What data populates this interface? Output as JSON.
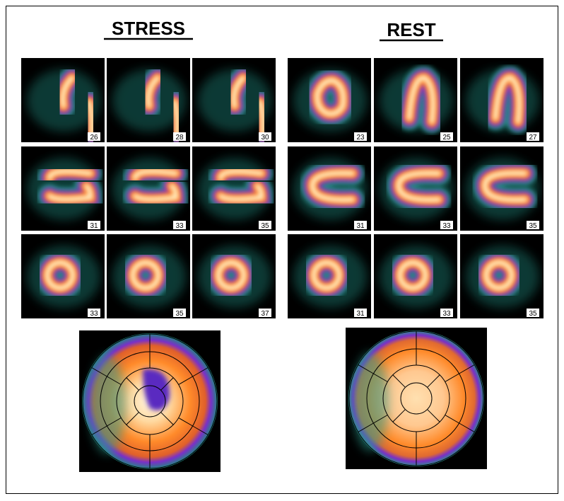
{
  "panels": [
    {
      "title": "STRESS",
      "rows": [
        [
          "26",
          "28",
          "30"
        ],
        [
          "31",
          "33",
          "35"
        ],
        [
          "33",
          "35",
          "37"
        ]
      ]
    },
    {
      "title": "REST",
      "rows": [
        [
          "23",
          "25",
          "27"
        ],
        [
          "31",
          "33",
          "35"
        ],
        [
          "31",
          "33",
          "35"
        ]
      ]
    }
  ]
}
